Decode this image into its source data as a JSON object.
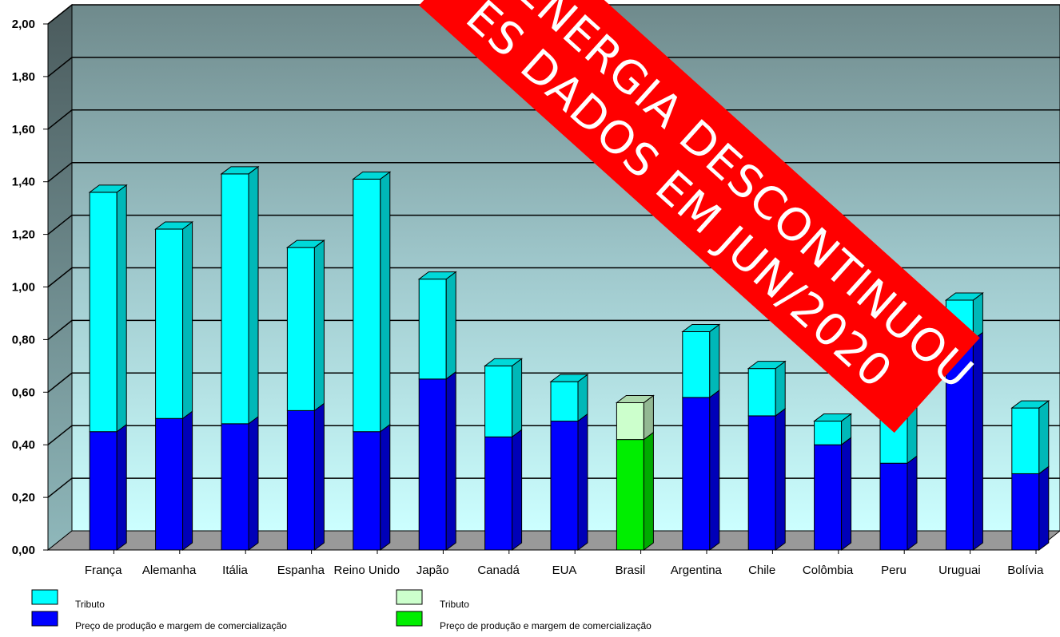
{
  "chart_data": {
    "type": "bar",
    "stacked": true,
    "three_d": true,
    "categories": [
      "França",
      "Alemanha",
      "Itália",
      "Espanha",
      "Reino Unido",
      "Japão",
      "Canadá",
      "EUA",
      "Brasil",
      "Argentina",
      "Chile",
      "Colômbia",
      "Peru",
      "Uruguai",
      "Bolívia"
    ],
    "series": [
      {
        "name": "Preço de produção e margem de comercialização",
        "values": [
          0.45,
          0.5,
          0.48,
          0.53,
          0.45,
          0.65,
          0.43,
          0.49,
          0.42,
          0.58,
          0.51,
          0.4,
          0.33,
          0.8,
          0.29
        ]
      },
      {
        "name": "Tributo",
        "values": [
          0.91,
          0.72,
          0.95,
          0.62,
          0.96,
          0.38,
          0.27,
          0.15,
          0.14,
          0.25,
          0.18,
          0.09,
          0.2,
          0.15,
          0.25
        ]
      }
    ],
    "highlight_category": "Brasil",
    "colors": {
      "base": "#0000ff",
      "tributo": "#00ffff",
      "brasil_base": "#00ee00",
      "brasil_tributo": "#ccffcc"
    },
    "ylim": [
      0,
      2.0
    ],
    "yticks": [
      "0,00",
      "0,20",
      "0,40",
      "0,60",
      "0,80",
      "1,00",
      "1,20",
      "1,40",
      "1,60",
      "1,80",
      "2,00"
    ],
    "grid": true,
    "legend": [
      {
        "label": "Tributo",
        "color": "#00ffff"
      },
      {
        "label": "Preço de produção e margem de comercialização",
        "color": "#0000ff"
      },
      {
        "label": "Tributo",
        "color": "#ccffcc"
      },
      {
        "label": "Preço de produção e margem de comercialização",
        "color": "#00ee00"
      }
    ],
    "legend_position": "bottom"
  },
  "banner": {
    "line1": "DE ENERGIA DESCONTINUOU",
    "line2": "ES DADOS EM JUN/2020",
    "color": "#ff0000"
  }
}
